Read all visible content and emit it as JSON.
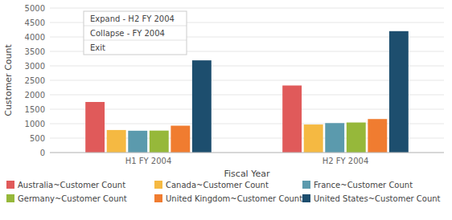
{
  "chart_data": {
    "type": "bar",
    "xlabel": "Fiscal Year",
    "ylabel": "Customer Count",
    "categories": [
      "H1 FY 2004",
      "H2 FY 2004"
    ],
    "series": [
      {
        "name": "Australia~Customer Count",
        "color": "#e05a5a",
        "values": [
          1750,
          2320
        ]
      },
      {
        "name": "Canada~Customer Count",
        "color": "#f5b942",
        "values": [
          780,
          970
        ]
      },
      {
        "name": "France~Customer Count",
        "color": "#5b9aad",
        "values": [
          755,
          1020
        ]
      },
      {
        "name": "Germany~Customer Count",
        "color": "#96b83a",
        "values": [
          760,
          1040
        ]
      },
      {
        "name": "United Kingdom~Customer Count",
        "color": "#f07c30",
        "values": [
          930,
          1160
        ]
      },
      {
        "name": "United States~Customer Count",
        "color": "#1d4e6e",
        "values": [
          3190,
          4200
        ]
      }
    ],
    "ylim": [
      0,
      5000
    ],
    "yticks": [
      0,
      500,
      1000,
      1500,
      2000,
      2500,
      3000,
      3500,
      4000,
      4500,
      5000
    ],
    "grid": true,
    "legend": "bottom",
    "annotations": [
      "Expand - H2 FY 2004",
      "Collapse - FY 2004",
      "Exit"
    ]
  }
}
